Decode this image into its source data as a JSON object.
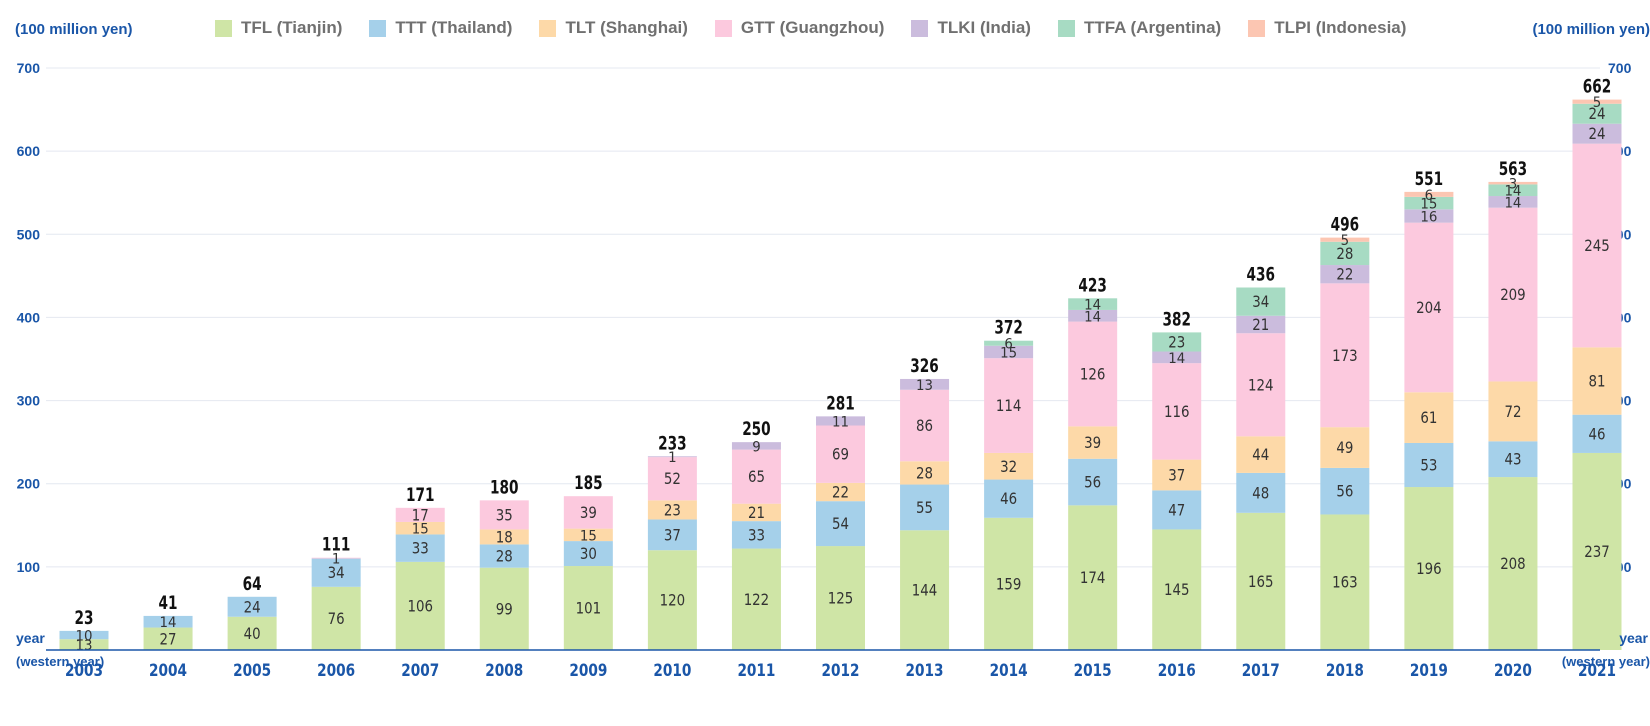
{
  "header": {
    "unit_left": "(100 million yen)",
    "unit_right": "(100 million yen)"
  },
  "footer": {
    "year_left": "year",
    "year_left_sub": "(western year)",
    "year_right": "year",
    "year_right_sub": "(western year)"
  },
  "colors": {
    "axis_text": "#1a56a8",
    "grid": "#e4e8f0",
    "baseline": "#1a56a8",
    "label_text": "#333333",
    "total_text": "#111111"
  },
  "chart_data": {
    "type": "bar",
    "stacked": true,
    "ylim": [
      0,
      700
    ],
    "yticks": [
      100,
      200,
      300,
      400,
      500,
      600,
      700
    ],
    "grid": true,
    "legend_position": "top",
    "categories": [
      "2003",
      "2004",
      "2005",
      "2006",
      "2007",
      "2008",
      "2009",
      "2010",
      "2011",
      "2012",
      "2013",
      "2014",
      "2015",
      "2016",
      "2017",
      "2018",
      "2019",
      "2020",
      "2021"
    ],
    "series": [
      {
        "name": "TFL (Tianjin)",
        "color": "#cfe5a6",
        "values": [
          13,
          27,
          40,
          76,
          106,
          99,
          101,
          120,
          122,
          125,
          144,
          159,
          174,
          145,
          165,
          163,
          196,
          208,
          237
        ]
      },
      {
        "name": "TTT (Thailand)",
        "color": "#a5d0ea",
        "values": [
          10,
          14,
          24,
          34,
          33,
          28,
          30,
          37,
          33,
          54,
          55,
          46,
          56,
          47,
          48,
          56,
          53,
          43,
          46
        ]
      },
      {
        "name": "TLT (Shanghai)",
        "color": "#fdd9a8",
        "values": [
          0,
          0,
          0,
          0,
          15,
          18,
          15,
          23,
          21,
          22,
          28,
          32,
          39,
          37,
          44,
          49,
          61,
          72,
          81
        ]
      },
      {
        "name": "GTT (Guangzhou)",
        "color": "#fcc9de",
        "values": [
          0,
          0,
          0,
          1,
          17,
          35,
          39,
          52,
          65,
          69,
          86,
          114,
          126,
          116,
          124,
          173,
          204,
          209,
          245
        ]
      },
      {
        "name": "TLKI (India)",
        "color": "#cbbcdd",
        "values": [
          0,
          0,
          0,
          0,
          0,
          0,
          0,
          1,
          9,
          11,
          13,
          15,
          14,
          14,
          21,
          22,
          16,
          14,
          24
        ]
      },
      {
        "name": "TTFA (Argentina)",
        "color": "#a7dbc3",
        "values": [
          0,
          0,
          0,
          0,
          0,
          0,
          0,
          0,
          0,
          0,
          0,
          6,
          14,
          23,
          34,
          28,
          15,
          14,
          24
        ]
      },
      {
        "name": "TLPI (Indonesia)",
        "color": "#fcc6b2",
        "values": [
          0,
          0,
          0,
          0,
          0,
          0,
          0,
          0,
          0,
          0,
          0,
          0,
          0,
          0,
          0,
          5,
          6,
          3,
          5
        ]
      }
    ],
    "segment_labels": [
      [
        13,
        10,
        null,
        null,
        null,
        null,
        null
      ],
      [
        27,
        14,
        null,
        null,
        null,
        null,
        null
      ],
      [
        40,
        24,
        null,
        null,
        null,
        null,
        null
      ],
      [
        76,
        34,
        null,
        1,
        null,
        null,
        null
      ],
      [
        106,
        33,
        15,
        17,
        null,
        null,
        null
      ],
      [
        99,
        28,
        18,
        35,
        null,
        null,
        null
      ],
      [
        101,
        30,
        15,
        39,
        null,
        null,
        null
      ],
      [
        120,
        37,
        23,
        52,
        1,
        null,
        null
      ],
      [
        122,
        33,
        21,
        65,
        9,
        null,
        null
      ],
      [
        125,
        54,
        22,
        69,
        11,
        null,
        null
      ],
      [
        144,
        55,
        28,
        86,
        13,
        null,
        null
      ],
      [
        159,
        46,
        32,
        114,
        15,
        6,
        null
      ],
      [
        174,
        56,
        39,
        126,
        14,
        14,
        null
      ],
      [
        145,
        47,
        37,
        116,
        14,
        23,
        null
      ],
      [
        165,
        48,
        44,
        124,
        21,
        34,
        null
      ],
      [
        163,
        56,
        49,
        173,
        22,
        28,
        5
      ],
      [
        196,
        53,
        61,
        204,
        16,
        15,
        6
      ],
      [
        208,
        43,
        72,
        209,
        14,
        14,
        3
      ],
      [
        237,
        46,
        81,
        245,
        24,
        24,
        5
      ]
    ],
    "totals": [
      23,
      41,
      64,
      111,
      171,
      180,
      185,
      233,
      250,
      281,
      326,
      372,
      423,
      382,
      436,
      496,
      551,
      563,
      662
    ]
  }
}
